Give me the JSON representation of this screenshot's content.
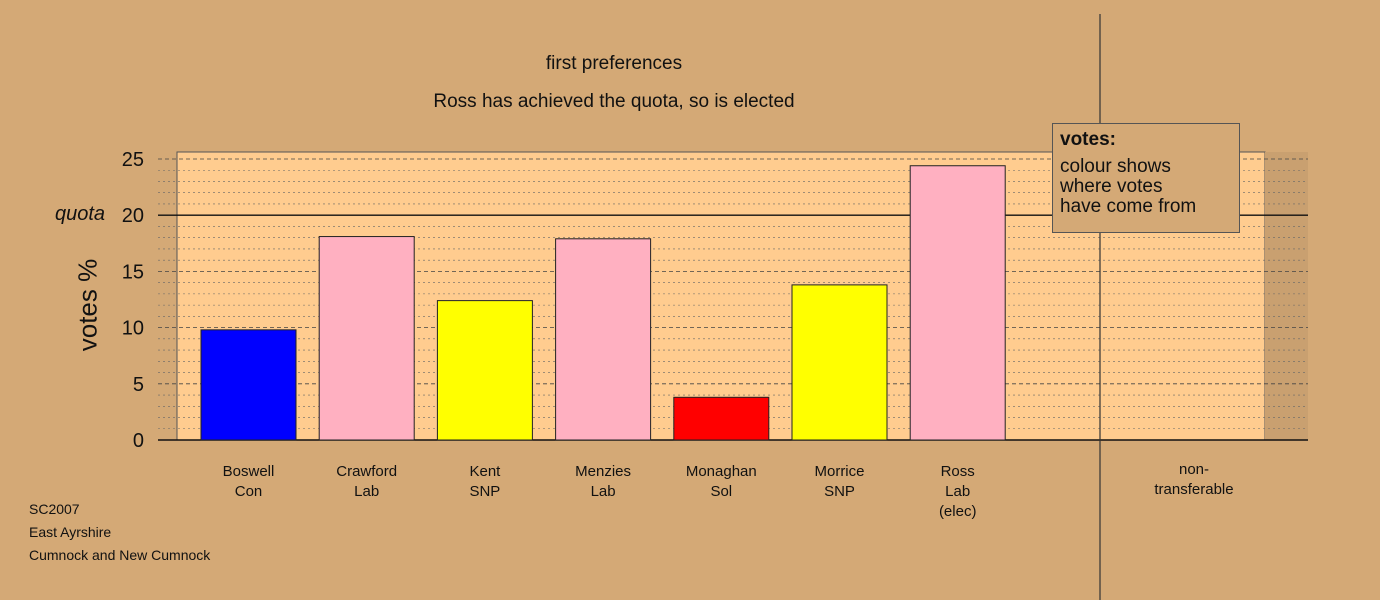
{
  "chart_data": {
    "type": "bar",
    "title": "first preferences",
    "subtitle": "Ross has achieved the quota, so is elected",
    "ylabel": "votes %",
    "ylim": [
      0,
      25
    ],
    "yticks": [
      0,
      5,
      10,
      15,
      20,
      25
    ],
    "quota": 20,
    "quota_label": "quota",
    "grid": "dashed horizontal",
    "bars": [
      {
        "lines": [
          "Boswell",
          "Con"
        ],
        "value": 9.8,
        "color": "#0000ff"
      },
      {
        "lines": [
          "Crawford",
          "Lab"
        ],
        "value": 18.1,
        "color": "#ffb0c1"
      },
      {
        "lines": [
          "Kent",
          "SNP"
        ],
        "value": 12.4,
        "color": "#ffff00"
      },
      {
        "lines": [
          "Menzies",
          "Lab"
        ],
        "value": 17.9,
        "color": "#ffb0c1"
      },
      {
        "lines": [
          "Monaghan",
          "Sol"
        ],
        "value": 3.8,
        "color": "#ff0000"
      },
      {
        "lines": [
          "Morrice",
          "SNP"
        ],
        "value": 13.8,
        "color": "#ffff00"
      },
      {
        "lines": [
          "Ross",
          "Lab",
          "(elec)"
        ],
        "value": 24.4,
        "color": "#ffb0c1"
      }
    ],
    "nontransferable": {
      "lines": [
        "non-",
        "transferable"
      ],
      "value": 0
    },
    "legend": {
      "heading": "votes:",
      "lines": [
        "colour shows",
        "where votes",
        "have come from"
      ],
      "position": "top-right"
    }
  },
  "footer": [
    "SC2007",
    "East Ayrshire",
    "Cumnock and New Cumnock"
  ],
  "colors": {
    "background": "#d4a976",
    "plot": "#ffcc8f"
  }
}
